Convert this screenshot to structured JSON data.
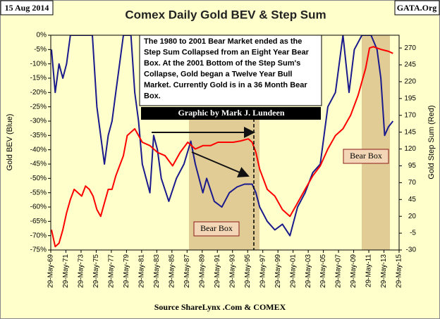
{
  "chart_data": {
    "type": "line",
    "title": "Comex Daily Gold BEV & Step Sum",
    "date_label": "15 Aug 2014",
    "site_label": "GATA.Org",
    "source": "Source ShareLynx .Com & COMEX",
    "ylabel": "Gold BEV   (Blue)",
    "y2label": "Gold Step Sum   (Red)",
    "note": [
      "The 1980 to 2001 Bear Market ended as the",
      "Step Sum Collapsed from an Eight Year Bear",
      "Box.  At the  2001 Bottom of the Step Sum's",
      "Collapse, Gold began a Twelve Year Bull",
      "Market.  Currently Gold is in a  36 Month Bear",
      "Box."
    ],
    "credit": "Graphic by Mark J. Lundeen",
    "box_labels": [
      "Bear Box",
      "Bear Box"
    ],
    "xlim": [
      1969.41,
      2015.41
    ],
    "xticks": [
      {
        "value": 1969.41,
        "label": "29-May-69"
      },
      {
        "value": 1971.41,
        "label": "29-May-71"
      },
      {
        "value": 1973.41,
        "label": "29-May-73"
      },
      {
        "value": 1975.41,
        "label": "29-May-75"
      },
      {
        "value": 1977.41,
        "label": "29-May-77"
      },
      {
        "value": 1979.41,
        "label": "29-May-79"
      },
      {
        "value": 1981.41,
        "label": "29-May-81"
      },
      {
        "value": 1983.41,
        "label": "29-May-83"
      },
      {
        "value": 1985.41,
        "label": "29-May-85"
      },
      {
        "value": 1987.41,
        "label": "29-May-87"
      },
      {
        "value": 1989.41,
        "label": "29-May-89"
      },
      {
        "value": 1991.41,
        "label": "29-May-91"
      },
      {
        "value": 1993.41,
        "label": "29-May-93"
      },
      {
        "value": 1995.41,
        "label": "29-May-95"
      },
      {
        "value": 1997.41,
        "label": "29-May-97"
      },
      {
        "value": 1999.41,
        "label": "29-May-99"
      },
      {
        "value": 2001.41,
        "label": "29-May-01"
      },
      {
        "value": 2003.41,
        "label": "29-May-03"
      },
      {
        "value": 2005.41,
        "label": "29-May-05"
      },
      {
        "value": 2007.41,
        "label": "29-May-07"
      },
      {
        "value": 2009.41,
        "label": "29-May-09"
      },
      {
        "value": 2011.41,
        "label": "29-May-11"
      },
      {
        "value": 2013.41,
        "label": "29-May-13"
      },
      {
        "value": 2015.41,
        "label": "29-May-15"
      }
    ],
    "ylim": [
      -75,
      0
    ],
    "yticks": [
      {
        "value": 0,
        "label": "0%"
      },
      {
        "value": -5,
        "label": "-5%"
      },
      {
        "value": -10,
        "label": "-10%"
      },
      {
        "value": -15,
        "label": "-15%"
      },
      {
        "value": -20,
        "label": "-20%"
      },
      {
        "value": -25,
        "label": "-25%"
      },
      {
        "value": -30,
        "label": "-30%"
      },
      {
        "value": -35,
        "label": "-35%"
      },
      {
        "value": -40,
        "label": "-40%"
      },
      {
        "value": -45,
        "label": "-45%"
      },
      {
        "value": -50,
        "label": "-50%"
      },
      {
        "value": -55,
        "label": "-55%"
      },
      {
        "value": -60,
        "label": "-60%"
      },
      {
        "value": -65,
        "label": "-65%"
      },
      {
        "value": -70,
        "label": "-70%"
      },
      {
        "value": -75,
        "label": "-75%"
      }
    ],
    "y2lim": [
      -30,
      289
    ],
    "y2ticks": [
      -30,
      -5,
      20,
      45,
      70,
      95,
      120,
      145,
      170,
      195,
      220,
      245,
      270
    ],
    "series": [
      {
        "name": "Gold BEV",
        "color": "#1a1a8c",
        "axis": "y",
        "x": [
          1969.5,
          1970.0,
          1970.5,
          1971.0,
          1971.5,
          1972.0,
          1973.0,
          1974.0,
          1974.9,
          1975.5,
          1976.5,
          1977.0,
          1977.5,
          1978.0,
          1978.5,
          1979.0,
          1980.0,
          1980.5,
          1981.0,
          1981.5,
          1982.5,
          1983.0,
          1983.5,
          1984.0,
          1985.0,
          1986.0,
          1987.0,
          1987.9,
          1988.5,
          1989.5,
          1990.0,
          1991.0,
          1992.0,
          1993.0,
          1994.0,
          1995.0,
          1996.0,
          1996.5,
          1997.0,
          1998.0,
          1999.0,
          2000.0,
          2001.0,
          2001.5,
          2002.0,
          2003.0,
          2004.0,
          2005.0,
          2006.0,
          2007.0,
          2008.0,
          2008.8,
          2009.5,
          2010.5,
          2011.7,
          2012.5,
          2013.0,
          2013.5,
          2014.0,
          2014.6
        ],
        "values": [
          -5,
          -20,
          -10,
          -15,
          -10,
          0,
          0,
          0,
          0,
          -25,
          -45,
          -35,
          -30,
          -20,
          -10,
          0,
          0,
          -20,
          -30,
          -45,
          -55,
          -35,
          -40,
          -50,
          -58,
          -50,
          -45,
          -37,
          -45,
          -55,
          -50,
          -58,
          -60,
          -55,
          -53,
          -52,
          -52,
          -55,
          -60,
          -65,
          -68,
          -66,
          -70,
          -65,
          -60,
          -55,
          -48,
          -45,
          -25,
          -20,
          0,
          -20,
          -5,
          0,
          0,
          -5,
          -15,
          -35,
          -32,
          -30
        ]
      },
      {
        "name": "Gold Step Sum",
        "color": "#ff0000",
        "axis": "y2",
        "x": [
          1969.5,
          1970.0,
          1970.5,
          1971.0,
          1971.5,
          1972.0,
          1972.5,
          1973.0,
          1973.5,
          1974.0,
          1974.5,
          1975.0,
          1975.5,
          1976.0,
          1976.5,
          1977.0,
          1977.5,
          1978.0,
          1979.0,
          1979.5,
          1980.5,
          1981.5,
          1982.5,
          1983.5,
          1984.5,
          1985.5,
          1986.5,
          1987.5,
          1988.5,
          1989.5,
          1990.5,
          1991.5,
          1992.5,
          1993.5,
          1994.5,
          1995.5,
          1996.0,
          1996.5,
          1997.0,
          1998.0,
          1999.0,
          2000.0,
          2001.0,
          2002.0,
          2003.0,
          2004.0,
          2005.0,
          2006.0,
          2007.0,
          2008.0,
          2009.0,
          2010.0,
          2011.0,
          2011.5,
          2012.0,
          2013.0,
          2014.0,
          2014.6
        ],
        "values": [
          0,
          -25,
          -20,
          0,
          25,
          45,
          60,
          55,
          50,
          65,
          60,
          50,
          30,
          20,
          40,
          60,
          60,
          80,
          110,
          140,
          150,
          130,
          125,
          115,
          110,
          95,
          115,
          130,
          120,
          125,
          125,
          130,
          130,
          130,
          132,
          135,
          130,
          115,
          90,
          60,
          50,
          30,
          20,
          40,
          60,
          80,
          95,
          120,
          140,
          150,
          170,
          200,
          240,
          270,
          272,
          268,
          265,
          262
        ]
      }
    ]
  }
}
